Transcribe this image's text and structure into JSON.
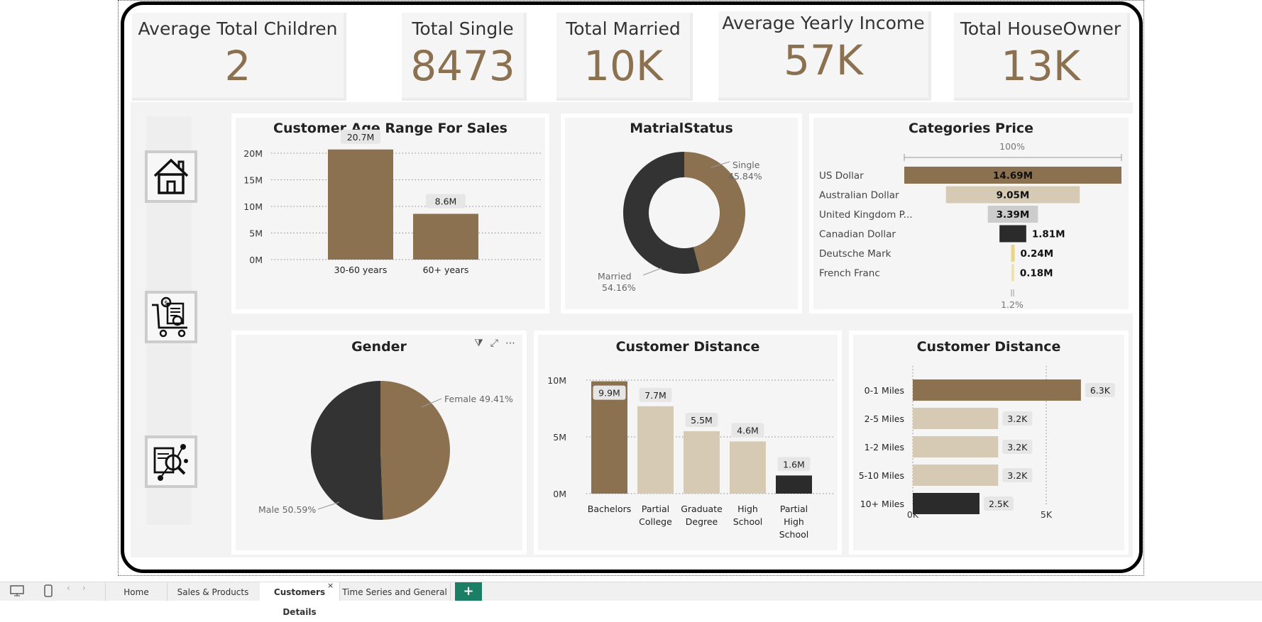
{
  "kpis": [
    {
      "label": "Average Total Children",
      "value": "2"
    },
    {
      "label": "Total Single",
      "value": "8473"
    },
    {
      "label": "Total Married",
      "value": "10K"
    },
    {
      "label": "Average Yearly Income",
      "value": "57K"
    },
    {
      "label": "Total HouseOwner",
      "value": "13K"
    }
  ],
  "nav": [
    "home-icon",
    "shopping-cart-invoice-icon",
    "data-analysis-icon"
  ],
  "age_chart": {
    "title": "Customer Age Range For Sales",
    "yticks": [
      "20M",
      "15M",
      "10M",
      "5M",
      "0M"
    ],
    "bars": [
      {
        "category": "30-60 years",
        "value": 20.7,
        "label": "20.7M"
      },
      {
        "category": "60+ years",
        "value": 8.6,
        "label": "8.6M"
      }
    ],
    "ymax": 20
  },
  "marital": {
    "title": "MatrialStatus",
    "single_label": "Single",
    "single_pct": "45.84%",
    "married_label": "Married",
    "married_pct": "54.16%"
  },
  "categories": {
    "title": "Categories Price",
    "top_pct": "100%",
    "bottom_pct": "1.2%",
    "rows": [
      {
        "name": "US Dollar",
        "label": "14.69M",
        "value": 14.69,
        "color": "#8b7150"
      },
      {
        "name": "Australian Dollar",
        "label": "9.05M",
        "value": 9.05,
        "color": "#d6cab5"
      },
      {
        "name": "United Kingdom P...",
        "label": "3.39M",
        "value": 3.39,
        "color": "#cccccc"
      },
      {
        "name": "Canadian Dollar",
        "label": "1.81M",
        "value": 1.81,
        "color": "#2b2b2b"
      },
      {
        "name": "Deutsche Mark",
        "label": "0.24M",
        "value": 0.24,
        "color": "#e9d58a"
      },
      {
        "name": "French Franc",
        "label": "0.18M",
        "value": 0.18,
        "color": "#efe0a8"
      }
    ]
  },
  "gender": {
    "title": "Gender",
    "female_label": "Female 49.41%",
    "male_label": "Male 50.59%"
  },
  "distance_edu": {
    "title": "Customer Distance",
    "yticks": [
      "10M",
      "5M",
      "0M"
    ],
    "bars": [
      {
        "lines": [
          "Bachelors"
        ],
        "value": 9.9,
        "label": "9.9M",
        "color": "#8b7150"
      },
      {
        "lines": [
          "Partial",
          "College"
        ],
        "value": 7.7,
        "label": "7.7M",
        "color": "#d6cab5"
      },
      {
        "lines": [
          "Graduate",
          "Degree"
        ],
        "value": 5.5,
        "label": "5.5M",
        "color": "#d6cab5"
      },
      {
        "lines": [
          "High",
          "School"
        ],
        "value": 4.6,
        "label": "4.6M",
        "color": "#d6cab5"
      },
      {
        "lines": [
          "Partial",
          "High",
          "School"
        ],
        "value": 1.6,
        "label": "1.6M",
        "color": "#2b2b2b"
      }
    ],
    "ymax": 10
  },
  "distance_miles": {
    "title": "Customer Distance",
    "xticks": [
      "0K",
      "5K"
    ],
    "rows": [
      {
        "name": "0-1 Miles",
        "value": 6.3,
        "label": "6.3K",
        "color": "#8b7150"
      },
      {
        "name": "2-5 Miles",
        "value": 3.2,
        "label": "3.2K",
        "color": "#d6cab5"
      },
      {
        "name": "1-2 Miles",
        "value": 3.2,
        "label": "3.2K",
        "color": "#d6cab5"
      },
      {
        "name": "5-10 Miles",
        "value": 3.2,
        "label": "3.2K",
        "color": "#d6cab5"
      },
      {
        "name": "10+ Miles",
        "value": 2.5,
        "label": "2.5K",
        "color": "#2b2b2b"
      }
    ],
    "xmax": 5
  },
  "tabs": [
    "Home",
    "Sales & Products",
    "Customers Details",
    "Time Series and General"
  ],
  "active_tab": "Customers Details",
  "add_tab_label": "+"
}
